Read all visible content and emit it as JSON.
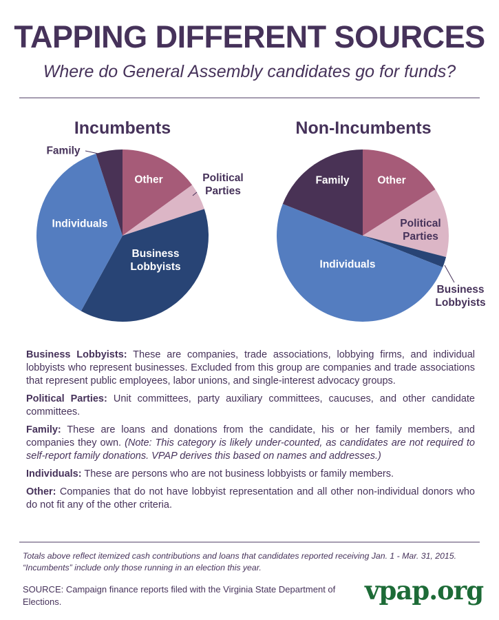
{
  "header": {
    "title": "TAPPING DIFFERENT SOURCES",
    "subtitle": "Where do General Assembly candidates go for funds?"
  },
  "chart_data": [
    {
      "type": "pie",
      "title": "Incumbents",
      "unit": "percent (estimated)",
      "slices": [
        {
          "label": "Other",
          "value": 15,
          "color": "#a65b78"
        },
        {
          "label": "Political Parties",
          "value": 5,
          "color": "#dcb6c6"
        },
        {
          "label": "Business Lobbyists",
          "value": 38,
          "color": "#284475"
        },
        {
          "label": "Individuals",
          "value": 37,
          "color": "#547dc0"
        },
        {
          "label": "Family",
          "value": 5,
          "color": "#493255"
        }
      ]
    },
    {
      "type": "pie",
      "title": "Non-Incumbents",
      "unit": "percent (estimated)",
      "slices": [
        {
          "label": "Other",
          "value": 16,
          "color": "#a65b78"
        },
        {
          "label": "Political Parties",
          "value": 13,
          "color": "#dcb6c6"
        },
        {
          "label": "Business Lobbyists",
          "value": 2,
          "color": "#284475"
        },
        {
          "label": "Individuals",
          "value": 50,
          "color": "#547dc0"
        },
        {
          "label": "Family",
          "value": 19,
          "color": "#493255"
        }
      ]
    }
  ],
  "labels": {
    "other": "Other",
    "political": "Political",
    "parties": "Parties",
    "business": "Business",
    "lobbyists": "Lobbyists",
    "individuals": "Individuals",
    "family": "Family"
  },
  "definitions": [
    {
      "term": "Business Lobbyists:",
      "text": " These are companies, trade associations, lobbying firms, and individual lobbyists who represent businesses. Excluded from this group are companies and trade associations that represent public employees, labor unions, and single-interest advocacy groups."
    },
    {
      "term": "Political Parties:",
      "text": " Unit committees, party auxiliary committees, caucuses, and other candidate committees."
    },
    {
      "term": "Family:",
      "text": " These are loans and donations from the candidate, his or her family members, and companies they own. ",
      "note": "(Note: This category is likely under-counted, as candidates are not required to self-report family donations. VPAP derives this based on names and addresses.)"
    },
    {
      "term": "Individuals:",
      "text": " These are persons who are not business lobbyists or family members."
    },
    {
      "term": "Other:",
      "text": " Companies that do not have lobbyist representation and all other non-individual donors who do not fit any of the other criteria."
    }
  ],
  "footer": {
    "notes": "Totals above reflect itemized cash contributions and loans that candidates reported receiving Jan. 1 - Mar. 31, 2015. “Incumbents” include only those running in an election this year.",
    "source": "SOURCE: Campaign finance reports filed with the  Virginia State Department of Elections.",
    "logo": "vpap.org"
  }
}
